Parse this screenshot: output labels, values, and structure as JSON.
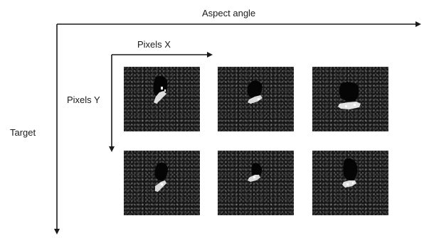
{
  "diagram": {
    "outer_x_axis_label": "Aspect angle",
    "outer_y_axis_label": "Target",
    "inner_x_axis_label": "Pixels X",
    "inner_y_axis_label": "Pixels Y",
    "grid": {
      "rows": 2,
      "cols": 3
    },
    "colors": {
      "line": "#1a1a1a",
      "tile_background": "#161616",
      "shadow": "#050505",
      "bright_return": "#f2f2f2"
    }
  }
}
